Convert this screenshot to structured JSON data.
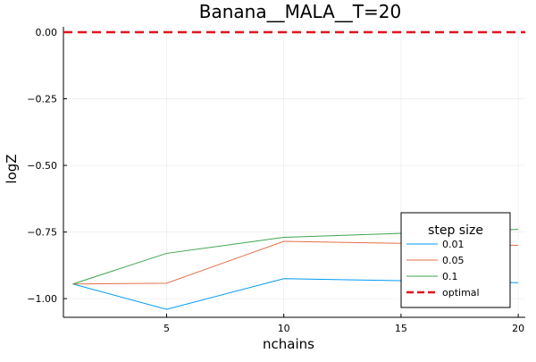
{
  "chart_data": {
    "type": "line",
    "title": "Banana__MALA__T=20",
    "xlabel": "nchains",
    "ylabel": "logZ",
    "xlim": [
      0.6,
      20.3
    ],
    "ylim": [
      -1.07,
      0.02
    ],
    "x_ticks": [
      5,
      10,
      15,
      20
    ],
    "x_tick_labels": [
      "5",
      "10",
      "15",
      "20"
    ],
    "y_ticks": [
      0.0,
      -0.25,
      -0.5,
      -0.75,
      -1.0
    ],
    "y_tick_labels": [
      "0.00",
      "−0.25",
      "−0.50",
      "−0.75",
      "−1.00"
    ],
    "grid": true,
    "legend": {
      "title": "step size",
      "position": "bottom-right"
    },
    "series": [
      {
        "name": "0.01",
        "color": "#009AFA",
        "x": [
          1,
          5,
          10,
          20
        ],
        "y": [
          -0.945,
          -1.04,
          -0.925,
          -0.94
        ]
      },
      {
        "name": "0.05",
        "color": "#E36F47",
        "x": [
          1,
          5,
          10,
          20
        ],
        "y": [
          -0.945,
          -0.942,
          -0.785,
          -0.8
        ]
      },
      {
        "name": "0.1",
        "color": "#3EA44E",
        "x": [
          1,
          5,
          10,
          20
        ],
        "y": [
          -0.945,
          -0.83,
          -0.77,
          -0.74
        ]
      }
    ],
    "reference_line": {
      "name": "optimal",
      "y": 0.0,
      "color": "#E0141E",
      "style": "dashed"
    }
  }
}
